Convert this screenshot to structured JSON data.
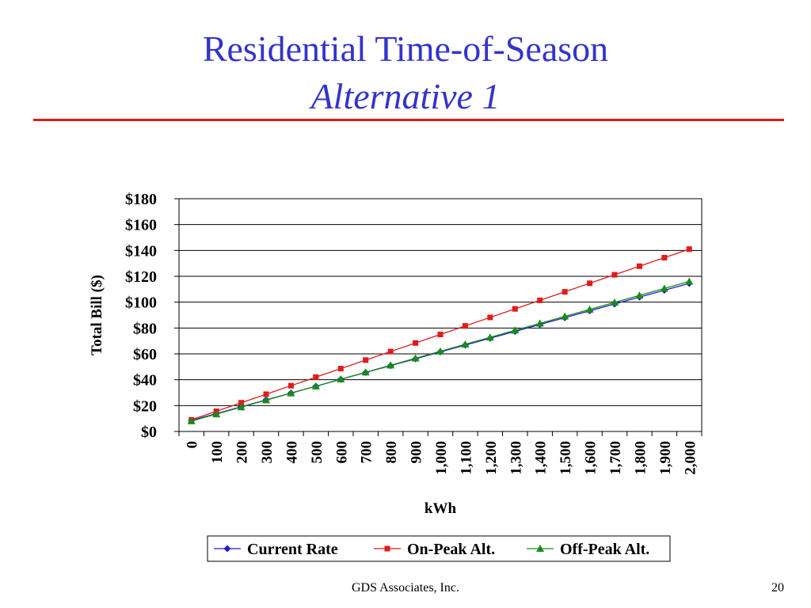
{
  "slide": {
    "title_line1": "Residential Time-of-Season",
    "title_line2": "Alternative 1",
    "footer": "GDS Associates, Inc.",
    "page_number": "20",
    "title_color": "#3333cc",
    "rule_color": "#e01b1b"
  },
  "chart_data": {
    "type": "line",
    "xlabel": "kWh",
    "ylabel": "Total Bill ($)",
    "categories": [
      "0",
      "100",
      "200",
      "300",
      "400",
      "500",
      "600",
      "700",
      "800",
      "900",
      "1,000",
      "1,100",
      "1,200",
      "1,300",
      "1,400",
      "1,500",
      "1,600",
      "1,700",
      "1,800",
      "1,900",
      "2,000"
    ],
    "y_ticks": [
      "$0",
      "$20",
      "$40",
      "$60",
      "$80",
      "$100",
      "$120",
      "$140",
      "$160",
      "$180"
    ],
    "ylim": [
      0,
      180
    ],
    "grid": true,
    "legend_position": "bottom",
    "series": [
      {
        "name": "Current Rate",
        "color": "#1f1fcc",
        "marker": "diamond",
        "values": [
          8.5,
          13.8,
          19.1,
          24.4,
          29.7,
          35.0,
          40.3,
          45.6,
          50.9,
          56.2,
          61.5,
          66.8,
          72.1,
          77.4,
          82.7,
          88.0,
          93.3,
          98.6,
          103.9,
          109.2,
          114.5
        ]
      },
      {
        "name": "On-Peak Alt.",
        "color": "#e01b1b",
        "marker": "square",
        "values": [
          9.0,
          15.6,
          22.2,
          28.8,
          35.4,
          42.0,
          48.6,
          55.2,
          61.8,
          68.4,
          75.0,
          81.6,
          88.2,
          94.8,
          101.4,
          108.0,
          114.6,
          121.2,
          127.8,
          134.4,
          141.0
        ]
      },
      {
        "name": "Off-Peak Alt.",
        "color": "#1a8a1a",
        "marker": "triangle",
        "values": [
          8.0,
          13.4,
          18.8,
          24.2,
          29.6,
          35.0,
          40.4,
          45.8,
          51.2,
          56.6,
          62.0,
          67.4,
          72.8,
          78.2,
          83.6,
          89.0,
          94.4,
          99.8,
          105.2,
          110.6,
          116.0
        ]
      }
    ]
  }
}
